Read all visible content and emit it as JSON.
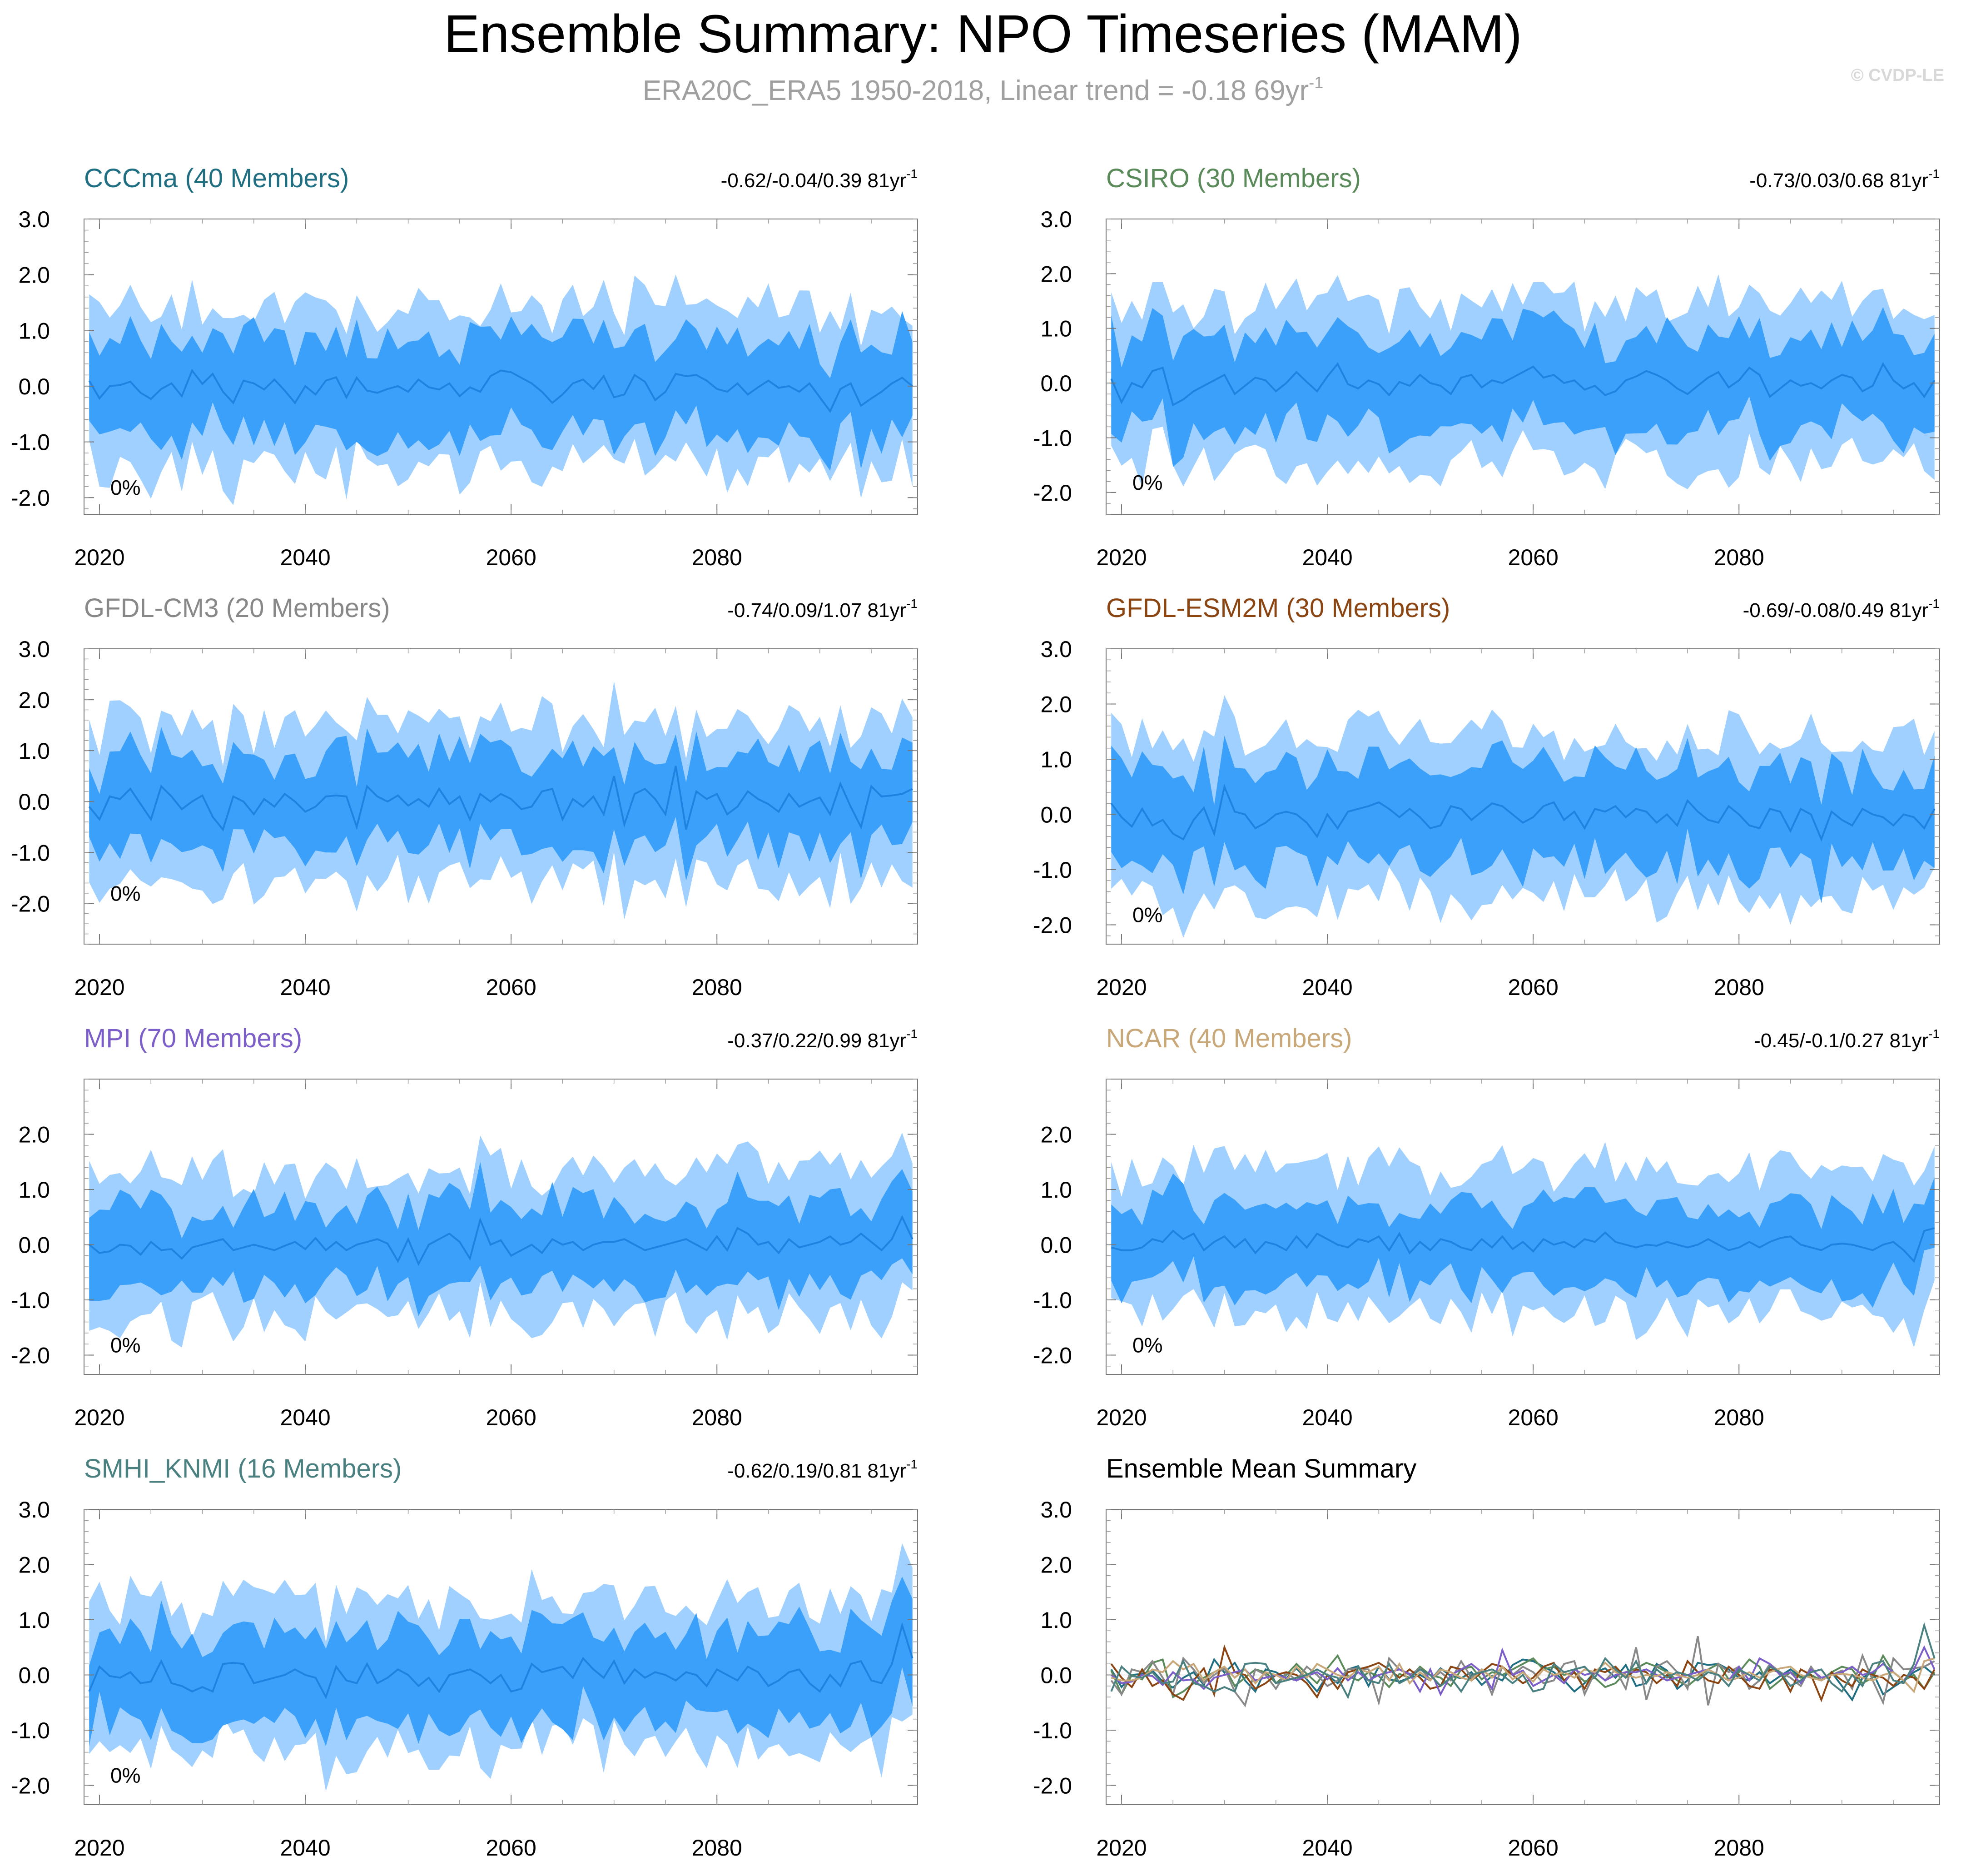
{
  "title": "Ensemble Summary: NPO Timeseries (MAM)",
  "subtitle": {
    "text": "ERA20C_ERA5 1950-2018, Linear trend = -0.18 69yr",
    "superscript": "-1",
    "color": "#a0a0a0"
  },
  "watermark": {
    "text": "© CVDP-LE",
    "color": "#d8d8d8"
  },
  "colors": {
    "outer_band": "#9fd0ff",
    "inner_band": "#3aa0fa",
    "mean_line": "#1f82e0"
  },
  "chart_data": [
    {
      "type": "area",
      "title": "CCCma (40 Members)",
      "title_color": "#1f6e82",
      "trend": "-0.62/-0.04/0.39 81yr",
      "trend_superscript": "-1",
      "annotation": "0%",
      "ylim": [
        -2.3,
        3.0
      ],
      "yticks": [
        "3.0",
        "2.0",
        "1.0",
        "0.0",
        "-1.0",
        "-2.0"
      ],
      "ytick_values": [
        3.0,
        2.0,
        1.0,
        0.0,
        -1.0,
        -2.0
      ],
      "xlim": [
        2018.5,
        2099.5
      ],
      "xticks": [
        "2020",
        "2040",
        "2060",
        "2080"
      ],
      "xtick_values": [
        2020,
        2040,
        2060,
        2080
      ],
      "start_year": 2019,
      "mean_values": [
        0.1,
        -0.22,
        0.0,
        0.02,
        0.08,
        -0.12,
        -0.23,
        -0.05,
        0.05,
        -0.18,
        0.28,
        0.04,
        0.22,
        -0.1,
        -0.3,
        0.1,
        0.05,
        -0.06,
        0.12,
        -0.08,
        -0.3,
        0.0,
        -0.15,
        0.1,
        0.16,
        -0.2,
        0.15,
        -0.08,
        -0.12,
        -0.05,
        0.0,
        -0.1,
        0.12,
        -0.02,
        -0.06,
        0.05,
        -0.18,
        -0.02,
        -0.1,
        0.18,
        0.28,
        0.25,
        0.15,
        0.05,
        -0.1,
        -0.3,
        -0.15,
        0.05,
        0.12,
        -0.05,
        0.18,
        -0.2,
        -0.15,
        0.2,
        0.08,
        -0.25,
        -0.1,
        0.22,
        0.18,
        0.2,
        0.1,
        -0.05,
        -0.1,
        0.05,
        -0.15,
        -0.02,
        0.1,
        -0.03,
        0.0,
        -0.1,
        0.05,
        -0.2,
        -0.45,
        -0.05,
        0.05,
        -0.35,
        -0.22,
        -0.1,
        0.05,
        0.15,
        0.0
      ],
      "inner_half_width": 0.85,
      "outer_half_width": 1.45
    },
    {
      "type": "area",
      "title": "CSIRO (30 Members)",
      "title_color": "#5a8a5a",
      "trend": "-0.73/0.03/0.68 81yr",
      "trend_superscript": "-1",
      "annotation": "0%",
      "ylim": [
        -2.4,
        3.0
      ],
      "yticks": [
        "3.0",
        "2.0",
        "1.0",
        "0.0",
        "-1.0",
        "-2.0"
      ],
      "ytick_values": [
        3.0,
        2.0,
        1.0,
        0.0,
        -1.0,
        -2.0
      ],
      "xlim": [
        2018.5,
        2099.5
      ],
      "xticks": [
        "2020",
        "2040",
        "2060",
        "2080"
      ],
      "xtick_values": [
        2020,
        2040,
        2060,
        2080
      ],
      "start_year": 2019,
      "mean_values": [
        0.08,
        -0.35,
        0.0,
        -0.08,
        0.22,
        0.28,
        -0.4,
        -0.3,
        -0.15,
        -0.05,
        0.05,
        0.15,
        -0.2,
        -0.05,
        0.1,
        0.05,
        -0.15,
        0.0,
        0.2,
        0.02,
        -0.15,
        0.12,
        0.35,
        -0.02,
        -0.1,
        0.05,
        -0.02,
        -0.22,
        0.02,
        -0.05,
        0.15,
        0.0,
        -0.05,
        -0.2,
        0.1,
        0.15,
        -0.08,
        0.05,
        0.0,
        0.1,
        0.2,
        0.3,
        0.1,
        0.15,
        0.0,
        0.05,
        -0.12,
        -0.05,
        -0.22,
        -0.15,
        0.05,
        0.12,
        0.22,
        0.15,
        0.05,
        -0.1,
        -0.2,
        -0.05,
        0.1,
        0.2,
        -0.08,
        0.05,
        0.28,
        0.15,
        -0.25,
        -0.1,
        0.05,
        -0.05,
        0.0,
        -0.1,
        0.05,
        0.15,
        0.1,
        -0.15,
        -0.05,
        0.35,
        0.05,
        -0.1,
        0.0,
        -0.25,
        0.05
      ],
      "inner_half_width": 0.85,
      "outer_half_width": 1.45
    },
    {
      "type": "area",
      "title": "GFDL-CM3 (20 Members)",
      "title_color": "#888888",
      "trend": "-0.74/0.09/1.07 81yr",
      "trend_superscript": "-1",
      "annotation": "0%",
      "ylim": [
        -2.8,
        3.0
      ],
      "yticks": [
        "3.0",
        "2.0",
        "1.0",
        "0.0",
        "-1.0",
        "-2.0"
      ],
      "ytick_values": [
        3.0,
        2.0,
        1.0,
        0.0,
        -1.0,
        -2.0
      ],
      "xlim": [
        2018.5,
        2099.5
      ],
      "xticks": [
        "2020",
        "2040",
        "2060",
        "2080"
      ],
      "xtick_values": [
        2020,
        2040,
        2060,
        2080
      ],
      "start_year": 2019,
      "mean_values": [
        -0.1,
        -0.35,
        0.1,
        0.05,
        0.25,
        -0.05,
        -0.35,
        0.3,
        0.1,
        -0.15,
        0.0,
        0.12,
        -0.3,
        -0.55,
        0.1,
        0.0,
        -0.25,
        0.05,
        -0.1,
        0.15,
        0.0,
        -0.2,
        -0.1,
        0.1,
        0.12,
        0.1,
        -0.5,
        0.3,
        0.1,
        0.0,
        0.12,
        -0.08,
        0.05,
        -0.1,
        0.25,
        -0.05,
        0.1,
        -0.35,
        0.15,
        0.0,
        0.15,
        0.05,
        -0.15,
        -0.1,
        0.2,
        0.25,
        -0.35,
        0.05,
        -0.1,
        0.1,
        -0.25,
        0.5,
        -0.45,
        0.15,
        0.25,
        0.05,
        -0.25,
        0.7,
        -0.55,
        0.2,
        0.05,
        0.15,
        -0.25,
        -0.1,
        0.2,
        0.05,
        -0.05,
        -0.2,
        0.15,
        -0.1,
        0.0,
        0.08,
        -0.25,
        0.35,
        -0.1,
        -0.5,
        0.3,
        0.1,
        0.12,
        0.15,
        0.25
      ],
      "inner_half_width": 0.85,
      "outer_half_width": 1.55
    },
    {
      "type": "area",
      "title": "GFDL-ESM2M (30 Members)",
      "title_color": "#8b4513",
      "trend": "-0.69/-0.08/0.49 81yr",
      "trend_superscript": "-1",
      "annotation": "0%",
      "ylim": [
        -2.35,
        3.0
      ],
      "yticks": [
        "3.0",
        "2.0",
        "1.0",
        "0.0",
        "-1.0",
        "-2.0"
      ],
      "ytick_values": [
        3.0,
        2.0,
        1.0,
        0.0,
        -1.0,
        -2.0
      ],
      "xlim": [
        2018.5,
        2099.5
      ],
      "xticks": [
        "2020",
        "2040",
        "2060",
        "2080"
      ],
      "xtick_values": [
        2020,
        2040,
        2060,
        2080
      ],
      "start_year": 2019,
      "mean_values": [
        0.2,
        -0.05,
        -0.22,
        0.1,
        -0.2,
        -0.1,
        -0.35,
        -0.45,
        -0.1,
        0.12,
        -0.35,
        0.5,
        0.05,
        0.0,
        -0.25,
        -0.15,
        0.0,
        0.05,
        0.0,
        -0.15,
        -0.4,
        0.0,
        -0.25,
        0.05,
        0.1,
        0.15,
        0.22,
        0.1,
        -0.05,
        0.1,
        -0.05,
        -0.25,
        -0.2,
        0.15,
        0.1,
        -0.1,
        0.05,
        0.2,
        0.15,
        0.0,
        -0.15,
        -0.05,
        0.15,
        0.22,
        -0.1,
        0.05,
        -0.25,
        0.1,
        0.05,
        0.15,
        -0.05,
        0.1,
        0.05,
        -0.15,
        0.0,
        -0.2,
        0.25,
        0.05,
        -0.1,
        -0.15,
        0.15,
        0.0,
        -0.2,
        -0.25,
        0.1,
        0.05,
        -0.3,
        0.1,
        0.0,
        -0.45,
        0.05,
        -0.1,
        -0.2,
        0.1,
        0.0,
        -0.05,
        -0.2,
        0.0,
        -0.05,
        -0.25,
        0.1
      ],
      "inner_half_width": 0.85,
      "outer_half_width": 1.45
    },
    {
      "type": "area",
      "title": "MPI (70 Members)",
      "title_color": "#7b5ec8",
      "trend": "-0.37/0.22/0.99 81yr",
      "trend_superscript": "-1",
      "annotation": "0%",
      "ylim": [
        -2.35,
        3.0
      ],
      "yticks": [
        "2.0",
        "1.0",
        "0.0",
        "-1.0",
        "-2.0"
      ],
      "ytick_values": [
        2.0,
        1.0,
        0.0,
        -1.0,
        -2.0
      ],
      "xlim": [
        2018.5,
        2099.5
      ],
      "xticks": [
        "2020",
        "2040",
        "2060",
        "2080"
      ],
      "xtick_values": [
        2020,
        2040,
        2060,
        2080
      ],
      "start_year": 2019,
      "mean_values": [
        0.0,
        -0.15,
        -0.12,
        0.0,
        -0.02,
        -0.18,
        0.05,
        -0.1,
        -0.08,
        -0.25,
        -0.05,
        0.0,
        0.05,
        0.1,
        -0.1,
        -0.05,
        0.0,
        -0.05,
        -0.1,
        -0.02,
        0.05,
        -0.08,
        0.12,
        -0.1,
        0.05,
        -0.1,
        0.0,
        0.05,
        0.1,
        0.02,
        -0.3,
        0.1,
        -0.35,
        0.0,
        0.1,
        0.2,
        0.05,
        -0.25,
        0.45,
        0.0,
        0.08,
        -0.2,
        -0.1,
        0.0,
        -0.15,
        0.1,
        0.0,
        0.05,
        -0.1,
        0.0,
        0.05,
        0.05,
        0.1,
        0.0,
        -0.1,
        -0.05,
        0.0,
        0.05,
        0.1,
        0.0,
        -0.1,
        0.15,
        -0.1,
        0.3,
        0.2,
        0.0,
        0.05,
        -0.15,
        0.1,
        -0.05,
        0.0,
        0.05,
        0.15,
        0.0,
        0.05,
        0.2,
        0.05,
        -0.1,
        0.1,
        0.5,
        0.1
      ],
      "inner_half_width": 0.7,
      "outer_half_width": 1.3
    },
    {
      "type": "area",
      "title": "NCAR (40 Members)",
      "title_color": "#c8a878",
      "trend": "-0.45/-0.1/0.27 81yr",
      "trend_superscript": "-1",
      "annotation": "0%",
      "ylim": [
        -2.35,
        3.0
      ],
      "yticks": [
        "2.0",
        "1.0",
        "0.0",
        "-1.0",
        "-2.0"
      ],
      "ytick_values": [
        2.0,
        1.0,
        0.0,
        -1.0,
        -2.0
      ],
      "xlim": [
        2018.5,
        2099.5
      ],
      "xticks": [
        "2020",
        "2040",
        "2060",
        "2080"
      ],
      "xtick_values": [
        2020,
        2040,
        2060,
        2080
      ],
      "start_year": 2019,
      "mean_values": [
        -0.05,
        -0.1,
        -0.1,
        -0.05,
        0.1,
        0.05,
        0.25,
        0.1,
        0.2,
        -0.1,
        0.05,
        0.15,
        -0.05,
        0.1,
        -0.15,
        0.05,
        0.0,
        -0.1,
        0.15,
        -0.05,
        0.2,
        0.1,
        0.0,
        -0.05,
        0.1,
        0.05,
        0.15,
        -0.1,
        0.2,
        -0.15,
        0.05,
        -0.1,
        0.1,
        0.05,
        -0.05,
        -0.1,
        0.1,
        -0.05,
        0.15,
        -0.08,
        0.05,
        -0.12,
        0.1,
        0.0,
        0.05,
        -0.05,
        0.1,
        0.05,
        0.22,
        0.05,
        0.0,
        -0.05,
        0.0,
        -0.02,
        0.05,
        0.0,
        -0.05,
        0.0,
        0.1,
        0.0,
        -0.1,
        -0.05,
        0.05,
        -0.05,
        0.05,
        0.12,
        0.15,
        0.0,
        -0.05,
        -0.1,
        0.0,
        0.02,
        0.0,
        -0.05,
        -0.1,
        0.0,
        0.05,
        -0.1,
        -0.3,
        0.25,
        0.3
      ],
      "inner_half_width": 0.7,
      "outer_half_width": 1.3
    },
    {
      "type": "area",
      "title": "SMHI_KNMI (16 Members)",
      "title_color": "#4a8080",
      "trend": "-0.62/0.19/0.81 81yr",
      "trend_superscript": "-1",
      "annotation": "0%",
      "ylim": [
        -2.35,
        3.0
      ],
      "yticks": [
        "3.0",
        "2.0",
        "1.0",
        "0.0",
        "-1.0",
        "-2.0"
      ],
      "ytick_values": [
        3.0,
        2.0,
        1.0,
        0.0,
        -1.0,
        -2.0
      ],
      "xlim": [
        2018.5,
        2099.5
      ],
      "xticks": [
        "2020",
        "2040",
        "2060",
        "2080"
      ],
      "xtick_values": [
        2020,
        2040,
        2060,
        2080
      ],
      "start_year": 2019,
      "mean_values": [
        -0.3,
        0.15,
        -0.02,
        -0.05,
        0.05,
        -0.15,
        -0.12,
        0.25,
        -0.15,
        -0.2,
        -0.3,
        -0.22,
        -0.3,
        0.2,
        0.22,
        0.2,
        -0.15,
        -0.1,
        -0.05,
        0.0,
        0.1,
        0.0,
        -0.05,
        -0.4,
        0.15,
        -0.1,
        -0.15,
        0.2,
        -0.15,
        -0.05,
        0.1,
        0.0,
        -0.2,
        -0.05,
        -0.3,
        0.0,
        0.05,
        0.1,
        0.0,
        -0.15,
        0.0,
        -0.3,
        -0.25,
        0.2,
        0.05,
        0.1,
        0.15,
        -0.05,
        0.3,
        0.1,
        -0.05,
        0.25,
        -0.15,
        0.1,
        -0.05,
        0.05,
        0.0,
        -0.1,
        0.05,
        0.0,
        -0.2,
        0.1,
        0.0,
        -0.1,
        0.15,
        0.05,
        -0.2,
        -0.1,
        0.05,
        0.1,
        -0.15,
        -0.3,
        0.0,
        -0.2,
        0.2,
        0.25,
        -0.1,
        -0.15,
        0.2,
        0.9,
        0.3
      ],
      "inner_half_width": 0.8,
      "outer_half_width": 1.35
    },
    {
      "type": "line",
      "title": "Ensemble Mean Summary",
      "title_color": "#000000",
      "ylim": [
        -2.35,
        3.0
      ],
      "yticks": [
        "3.0",
        "2.0",
        "1.0",
        "0.0",
        "-1.0",
        "-2.0"
      ],
      "ytick_values": [
        3.0,
        2.0,
        1.0,
        0.0,
        -1.0,
        -2.0
      ],
      "xlim": [
        2018.5,
        2099.5
      ],
      "xticks": [
        "2020",
        "2040",
        "2060",
        "2080"
      ],
      "xtick_values": [
        2020,
        2040,
        2060,
        2080
      ],
      "start_year": 2019,
      "series_colors": [
        "#1f6e82",
        "#5a8a5a",
        "#888888",
        "#8b4513",
        "#7b5ec8",
        "#c8a878",
        "#4a8080"
      ]
    }
  ]
}
